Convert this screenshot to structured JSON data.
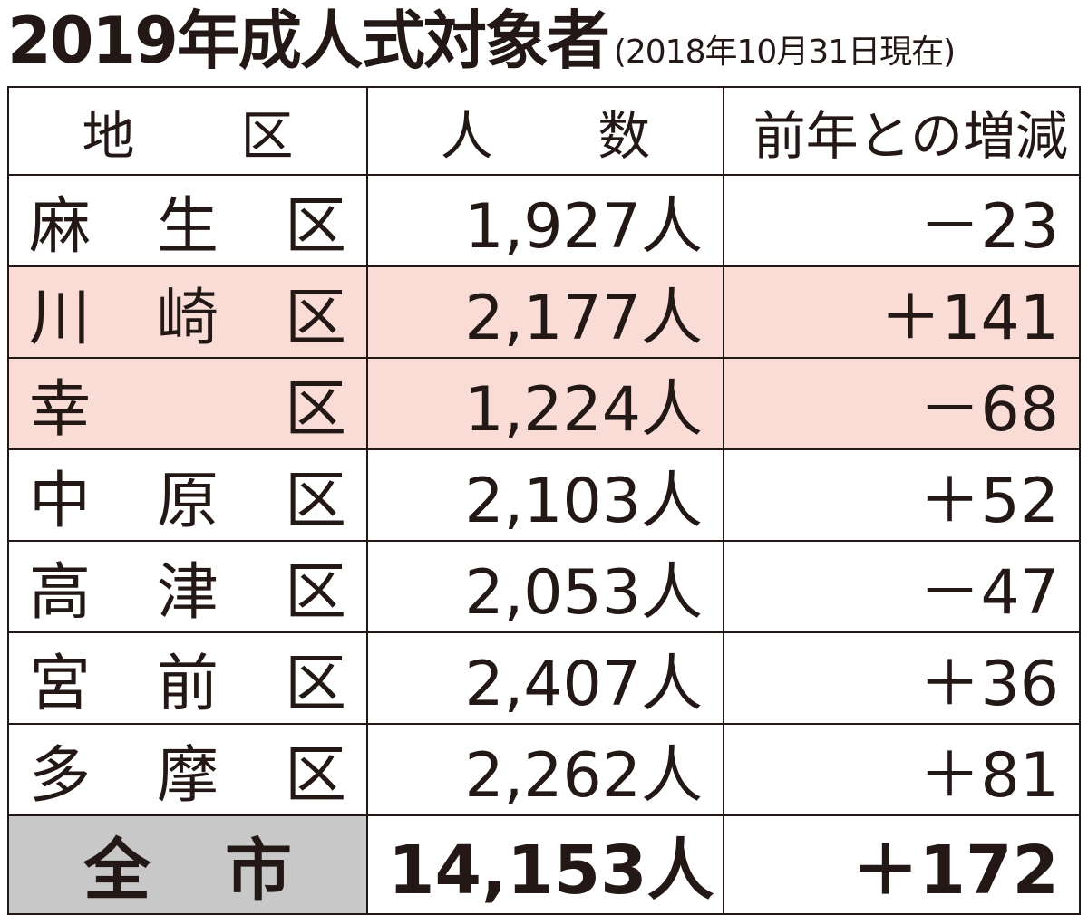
{
  "header": {
    "title": "2019年成人式対象者",
    "subtitle": "(2018年10月31日現在)"
  },
  "table": {
    "columns": [
      "地区",
      "人数",
      "前年との増減"
    ],
    "rows": [
      [
        "麻生区",
        "1,927人",
        "－23"
      ],
      [
        "川崎区",
        "2,177人",
        "＋141"
      ],
      [
        "幸区",
        "1,224人",
        "－68"
      ],
      [
        "中原区",
        "2,103人",
        "＋52"
      ],
      [
        "高津区",
        "2,053人",
        "－47"
      ],
      [
        "宮前区",
        "2,407人",
        "＋36"
      ],
      [
        "多摩区",
        "2,262人",
        "＋81"
      ]
    ],
    "total": [
      "全市",
      "14,153人",
      "＋172"
    ]
  }
}
